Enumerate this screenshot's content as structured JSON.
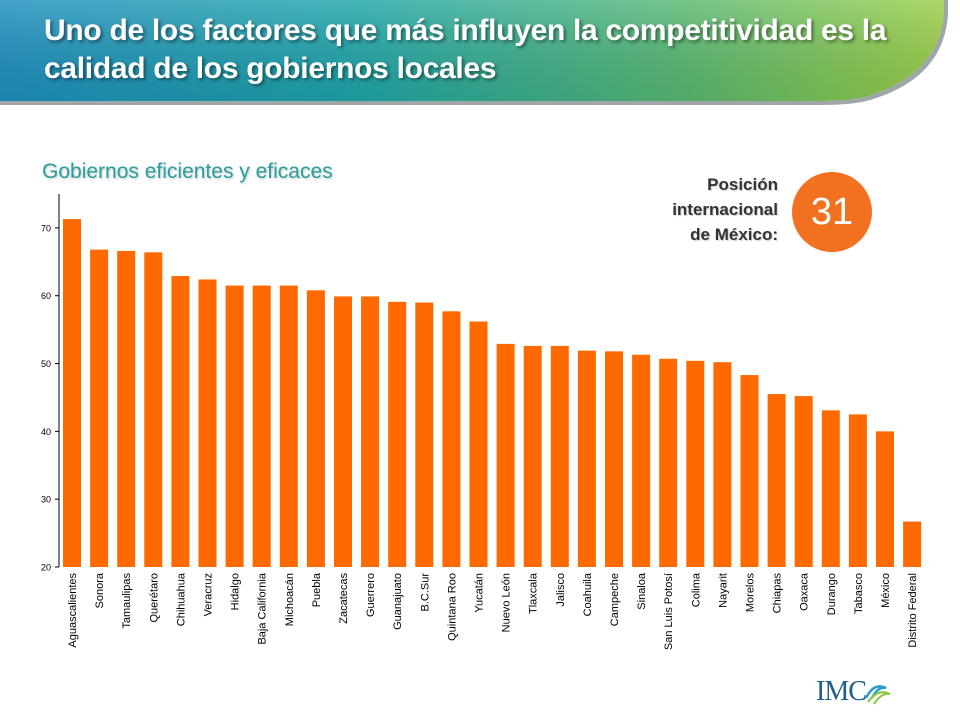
{
  "header": {
    "title": "Uno de los factores que más influyen la competitividad es la calidad de los gobiernos locales"
  },
  "subtitle": "Gobiernos eficientes y eficaces",
  "callout": {
    "line1": "Posición",
    "line2": "internacional",
    "line3": "de México:",
    "value": "31"
  },
  "logo": {
    "text": "IMC"
  },
  "colors": {
    "bar": "#ff6a00",
    "accent_teal": "#1f9aa0",
    "accent_green": "#8cc63f",
    "circle": "#f27120"
  },
  "chart_data": {
    "type": "bar",
    "categories": [
      "Aguascalientes",
      "Sonora",
      "Tamaulipas",
      "Querétaro",
      "Chihuahua",
      "Veracruz",
      "Hidalgo",
      "Baja California",
      "Michoacán",
      "Puebla",
      "Zacatecas",
      "Guerrero",
      "Guanajuato",
      "B.C.Sur",
      "Quintana Roo",
      "Yucatán",
      "Nuevo León",
      "Tlaxcala",
      "Jalisco",
      "Coahuila",
      "Campeche",
      "Sinaloa",
      "San Luis Potosí",
      "Colima",
      "Nayarit",
      "Morelos",
      "Chiapas",
      "Oaxaca",
      "Durango",
      "Tabasco",
      "México",
      "Distrito Federal"
    ],
    "values": [
      71.3,
      66.8,
      66.6,
      66.4,
      62.9,
      62.4,
      61.5,
      61.5,
      61.5,
      60.8,
      59.9,
      59.9,
      59.1,
      59.0,
      57.7,
      56.2,
      52.9,
      52.6,
      52.6,
      51.9,
      51.8,
      51.3,
      50.7,
      50.4,
      50.2,
      48.3,
      45.5,
      45.2,
      43.1,
      42.5,
      40.0,
      26.7
    ],
    "ylim": [
      20,
      75
    ],
    "yticks": [
      "20",
      "30",
      "40",
      "50",
      "60",
      "70"
    ],
    "grid": false,
    "legend": "none"
  }
}
